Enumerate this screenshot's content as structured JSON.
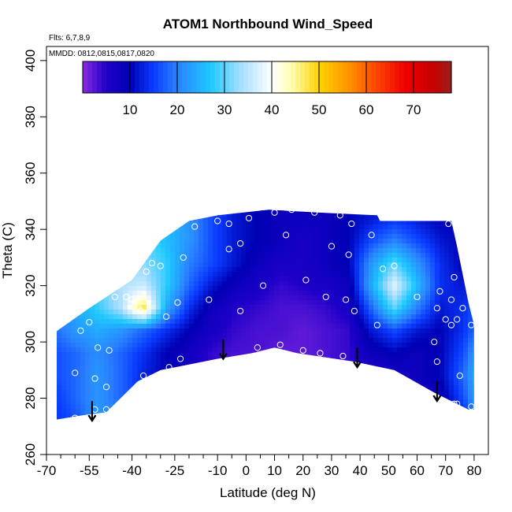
{
  "chart_data": {
    "type": "heatmap",
    "title": "ATOM1 Northbound Wind_Speed",
    "subtitle_lines": [
      "Flts: 6,7,8,9",
      "MMDD: 0812,0815,0817,0820"
    ],
    "xlabel": "Latitude (deg N)",
    "ylabel": "Theta (C)",
    "xlim": [
      -70,
      85
    ],
    "ylim": [
      260,
      405
    ],
    "x_ticks": [
      -70,
      -55,
      -40,
      -25,
      -10,
      0,
      10,
      20,
      30,
      40,
      50,
      60,
      70,
      80
    ],
    "x_tick_labels": [
      "-70",
      "-55",
      "-40",
      "-25",
      "-10",
      "0",
      "10",
      "20",
      "30",
      "40",
      "50",
      "60",
      "70",
      "80"
    ],
    "x_minor_ticks": [
      -65,
      -60,
      -50,
      -45,
      -35,
      -30,
      -20,
      -15,
      -5,
      5,
      15,
      25,
      35,
      45,
      55,
      65,
      75
    ],
    "y_ticks": [
      260,
      280,
      300,
      320,
      340,
      360,
      380,
      400
    ],
    "y_tick_labels": [
      "260",
      "280",
      "300",
      "320",
      "340",
      "360",
      "380",
      "400"
    ],
    "colorbar": {
      "min": 0,
      "max": 78,
      "ticks": [
        10,
        20,
        30,
        40,
        50,
        60,
        70
      ],
      "tick_labels": [
        "10",
        "20",
        "30",
        "40",
        "50",
        "60",
        "70"
      ],
      "stops": [
        {
          "v": 0,
          "color": "#8a2be2"
        },
        {
          "v": 5,
          "color": "#1e00c8"
        },
        {
          "v": 10,
          "color": "#0000b4"
        },
        {
          "v": 15,
          "color": "#0a3cff"
        },
        {
          "v": 20,
          "color": "#2a82ff"
        },
        {
          "v": 27,
          "color": "#1ec8ff"
        },
        {
          "v": 33,
          "color": "#a0dcff"
        },
        {
          "v": 40,
          "color": "#ffffff"
        },
        {
          "v": 44,
          "color": "#ffffb4"
        },
        {
          "v": 50,
          "color": "#ffd200"
        },
        {
          "v": 56,
          "color": "#ff9600"
        },
        {
          "v": 62,
          "color": "#ff4600"
        },
        {
          "v": 68,
          "color": "#f00000"
        },
        {
          "v": 74,
          "color": "#c80000"
        },
        {
          "v": 78,
          "color": "#9a1e1e"
        }
      ]
    },
    "lat_grid": [
      -68,
      -60,
      -52,
      -44,
      -36,
      -28,
      -20,
      -12,
      -4,
      4,
      12,
      20,
      28,
      36,
      44,
      52,
      60,
      68,
      76,
      80
    ],
    "theta_grid": [
      272,
      280,
      288,
      296,
      304,
      312,
      320,
      328,
      336,
      344
    ],
    "surface_bottom": [
      {
        "lat": -69,
        "theta": 272
      },
      {
        "lat": -57,
        "theta": 274
      },
      {
        "lat": -49,
        "theta": 275
      },
      {
        "lat": -38,
        "theta": 286
      },
      {
        "lat": -30,
        "theta": 290
      },
      {
        "lat": -10,
        "theta": 294
      },
      {
        "lat": 2,
        "theta": 296
      },
      {
        "lat": 10,
        "theta": 298
      },
      {
        "lat": 18,
        "theta": 296
      },
      {
        "lat": 38,
        "theta": 293
      },
      {
        "lat": 52,
        "theta": 290
      },
      {
        "lat": 66,
        "theta": 282
      },
      {
        "lat": 78,
        "theta": 276
      },
      {
        "lat": 80,
        "theta": 276
      }
    ],
    "surface_top": [
      {
        "lat": -69,
        "theta": 302
      },
      {
        "lat": -55,
        "theta": 312
      },
      {
        "lat": -40,
        "theta": 322
      },
      {
        "lat": -30,
        "theta": 336
      },
      {
        "lat": -20,
        "theta": 343
      },
      {
        "lat": -10,
        "theta": 345
      },
      {
        "lat": 8,
        "theta": 347
      },
      {
        "lat": 25,
        "theta": 346
      },
      {
        "lat": 46,
        "theta": 345
      },
      {
        "lat": 47,
        "theta": 343
      },
      {
        "lat": 72,
        "theta": 343
      },
      {
        "lat": 74,
        "theta": 334
      },
      {
        "lat": 78,
        "theta": 314
      },
      {
        "lat": 80,
        "theta": 306
      }
    ],
    "values": [
      [
        14,
        16,
        22,
        20,
        16,
        12,
        10,
        6,
        5,
        4,
        3,
        4,
        4,
        3,
        6,
        6,
        4,
        6,
        12,
        18
      ],
      [
        14,
        18,
        22,
        18,
        14,
        11,
        8,
        5,
        4,
        3,
        2,
        3,
        3,
        4,
        5,
        6,
        6,
        8,
        16,
        22
      ],
      [
        16,
        18,
        22,
        18,
        13,
        10,
        7,
        5,
        3,
        3,
        2,
        2,
        3,
        4,
        5,
        6,
        8,
        10,
        18,
        24
      ],
      [
        16,
        18,
        21,
        18,
        14,
        10,
        7,
        4,
        3,
        3,
        2,
        2,
        3,
        4,
        8,
        10,
        8,
        10,
        16,
        22
      ],
      [
        18,
        22,
        24,
        22,
        18,
        14,
        10,
        6,
        4,
        3,
        3,
        2,
        3,
        4,
        12,
        16,
        12,
        10,
        14,
        18
      ],
      [
        20,
        24,
        28,
        34,
        48,
        24,
        14,
        8,
        5,
        4,
        3,
        3,
        4,
        6,
        18,
        30,
        20,
        12,
        14,
        16
      ],
      [
        22,
        26,
        30,
        34,
        36,
        28,
        18,
        12,
        8,
        6,
        4,
        5,
        6,
        8,
        24,
        38,
        26,
        14,
        12,
        12
      ],
      [
        22,
        26,
        30,
        32,
        32,
        28,
        20,
        16,
        12,
        8,
        6,
        6,
        8,
        10,
        22,
        30,
        22,
        14,
        10,
        10
      ],
      [
        22,
        26,
        28,
        30,
        30,
        26,
        22,
        16,
        12,
        10,
        8,
        6,
        8,
        10,
        16,
        20,
        16,
        12,
        10,
        10
      ],
      [
        22,
        24,
        26,
        28,
        28,
        26,
        22,
        16,
        12,
        10,
        8,
        8,
        8,
        10,
        12,
        14,
        12,
        10,
        10,
        10
      ]
    ],
    "observations": [
      {
        "lat": -68,
        "theta": 297
      },
      {
        "lat": -68,
        "theta": 288
      },
      {
        "lat": -68,
        "theta": 273
      },
      {
        "lat": -60,
        "theta": 289
      },
      {
        "lat": -60,
        "theta": 273
      },
      {
        "lat": -58,
        "theta": 304
      },
      {
        "lat": -55,
        "theta": 307
      },
      {
        "lat": -52,
        "theta": 298
      },
      {
        "lat": -53,
        "theta": 287
      },
      {
        "lat": -53,
        "theta": 276
      },
      {
        "lat": -49,
        "theta": 276
      },
      {
        "lat": -49,
        "theta": 284
      },
      {
        "lat": -48,
        "theta": 297
      },
      {
        "lat": -46,
        "theta": 316
      },
      {
        "lat": -42,
        "theta": 316
      },
      {
        "lat": -40,
        "theta": 315
      },
      {
        "lat": -37,
        "theta": 311
      },
      {
        "lat": -36,
        "theta": 288
      },
      {
        "lat": -35,
        "theta": 325
      },
      {
        "lat": -33,
        "theta": 328
      },
      {
        "lat": -30,
        "theta": 327
      },
      {
        "lat": -28,
        "theta": 309
      },
      {
        "lat": -27,
        "theta": 291
      },
      {
        "lat": -24,
        "theta": 314
      },
      {
        "lat": -23,
        "theta": 294
      },
      {
        "lat": -22,
        "theta": 330
      },
      {
        "lat": -18,
        "theta": 341
      },
      {
        "lat": -13,
        "theta": 315
      },
      {
        "lat": -10,
        "theta": 343
      },
      {
        "lat": -6,
        "theta": 333
      },
      {
        "lat": -6,
        "theta": 342
      },
      {
        "lat": -2,
        "theta": 311
      },
      {
        "lat": -2,
        "theta": 335
      },
      {
        "lat": 1,
        "theta": 344
      },
      {
        "lat": 4,
        "theta": 298
      },
      {
        "lat": 6,
        "theta": 320
      },
      {
        "lat": 10,
        "theta": 346
      },
      {
        "lat": 12,
        "theta": 299
      },
      {
        "lat": 14,
        "theta": 338
      },
      {
        "lat": 16,
        "theta": 347
      },
      {
        "lat": 20,
        "theta": 297
      },
      {
        "lat": 21,
        "theta": 322
      },
      {
        "lat": 24,
        "theta": 346
      },
      {
        "lat": 26,
        "theta": 296
      },
      {
        "lat": 28,
        "theta": 316
      },
      {
        "lat": 30,
        "theta": 334
      },
      {
        "lat": 33,
        "theta": 345
      },
      {
        "lat": 34,
        "theta": 295
      },
      {
        "lat": 35,
        "theta": 315
      },
      {
        "lat": 36,
        "theta": 331
      },
      {
        "lat": 37,
        "theta": 342
      },
      {
        "lat": 38,
        "theta": 311
      },
      {
        "lat": 44,
        "theta": 338
      },
      {
        "lat": 46,
        "theta": 306
      },
      {
        "lat": 48,
        "theta": 326
      },
      {
        "lat": 52,
        "theta": 327
      },
      {
        "lat": 60,
        "theta": 316
      },
      {
        "lat": 66,
        "theta": 300
      },
      {
        "lat": 67,
        "theta": 293
      },
      {
        "lat": 67,
        "theta": 312
      },
      {
        "lat": 68,
        "theta": 318
      },
      {
        "lat": 70,
        "theta": 308
      },
      {
        "lat": 71,
        "theta": 342
      },
      {
        "lat": 72,
        "theta": 315
      },
      {
        "lat": 72,
        "theta": 306
      },
      {
        "lat": 73,
        "theta": 323
      },
      {
        "lat": 73,
        "theta": 278
      },
      {
        "lat": 74,
        "theta": 278
      },
      {
        "lat": 75,
        "theta": 288
      },
      {
        "lat": 74,
        "theta": 308
      },
      {
        "lat": 76,
        "theta": 312
      },
      {
        "lat": 79,
        "theta": 306
      },
      {
        "lat": 79,
        "theta": 277
      }
    ],
    "arrows": [
      {
        "lat": -54,
        "theta_from": 279,
        "theta_to": 272
      },
      {
        "lat": -8,
        "theta_from": 301,
        "theta_to": 294
      },
      {
        "lat": 39,
        "theta_from": 298,
        "theta_to": 291
      },
      {
        "lat": 67,
        "theta_from": 286,
        "theta_to": 279
      }
    ],
    "grid": false,
    "legend": "top"
  }
}
